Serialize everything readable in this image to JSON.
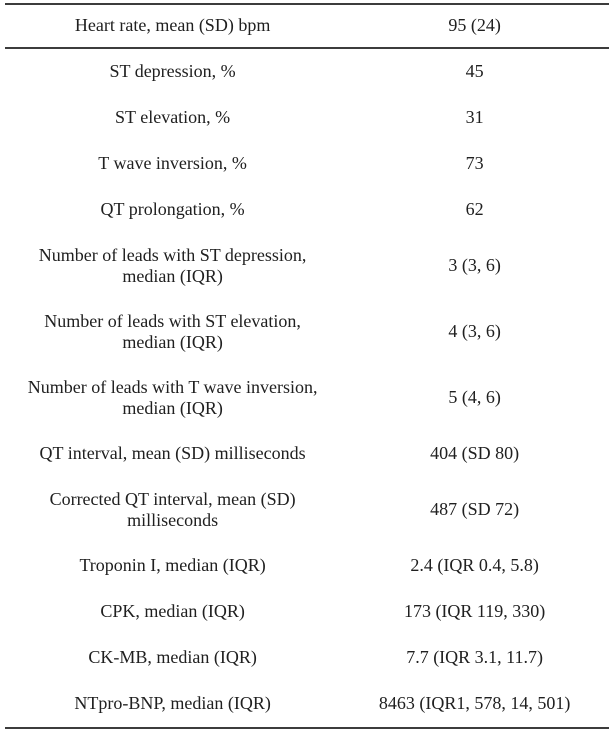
{
  "table": {
    "name": "clinical-ecg-biomarker-table",
    "columns": [
      "characteristic",
      "value"
    ],
    "rows": [
      {
        "label": "Heart rate, mean (SD) bpm",
        "value": "95 (24)"
      },
      {
        "label": "ST depression, %",
        "value": "45"
      },
      {
        "label": "ST elevation, %",
        "value": "31"
      },
      {
        "label": "T wave inversion, %",
        "value": "73"
      },
      {
        "label": "QT prolongation, %",
        "value": "62"
      },
      {
        "label": "Number of leads with ST depression,\nmedian (IQR)",
        "value": "3 (3, 6)"
      },
      {
        "label": "Number of leads with ST elevation,\nmedian (IQR)",
        "value": "4 (3, 6)"
      },
      {
        "label": "Number of leads with T wave inversion,\nmedian (IQR)",
        "value": "5 (4, 6)"
      },
      {
        "label": "QT interval, mean (SD) milliseconds",
        "value": "404 (SD 80)"
      },
      {
        "label": "Corrected QT interval, mean (SD)\nmilliseconds",
        "value": "487 (SD 72)"
      },
      {
        "label": "Troponin I, median (IQR)",
        "value": "2.4 (IQR 0.4, 5.8)"
      },
      {
        "label": "CPK, median (IQR)",
        "value": "173 (IQR 119, 330)"
      },
      {
        "label": "CK-MB, median (IQR)",
        "value": "7.7 (IQR 3.1, 11.7)"
      },
      {
        "label": "NTpro-BNP, median (IQR)",
        "value": "8463 (IQR1, 578, 14, 501)"
      }
    ]
  },
  "colors": {
    "rule": "#3c3c3c",
    "text": "#202020",
    "background": "#ffffff"
  }
}
